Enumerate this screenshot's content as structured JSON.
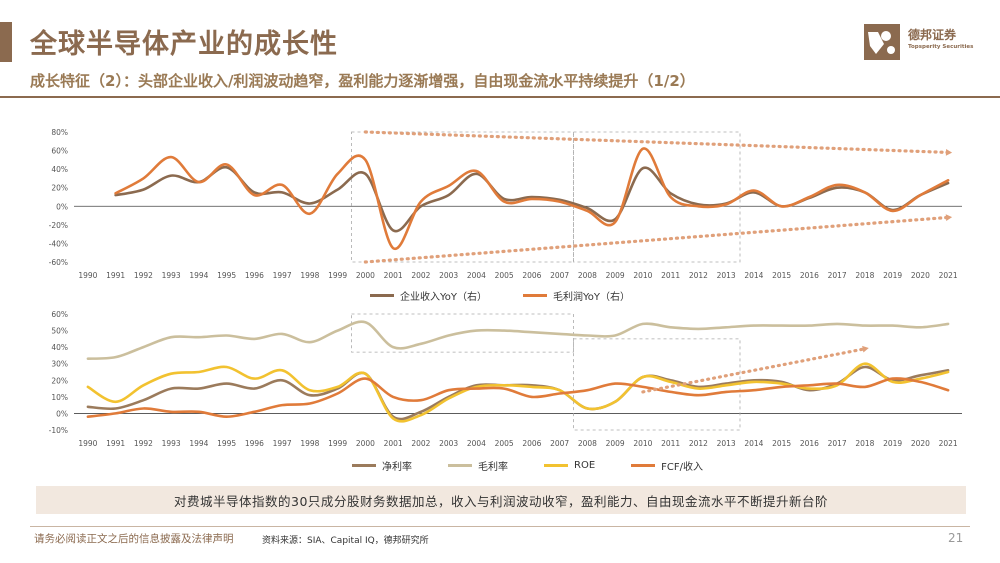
{
  "header": {
    "title": "全球半导体产业的成长性",
    "subtitle": "成长特征（2）：头部企业收入/利润波动趋窄，盈利能力逐渐增强，自由现金流水平持续提升（1/2）",
    "logo_cn": "德邦证券",
    "logo_en": "Topsperity Securities"
  },
  "colors": {
    "brand": "#8b6a4f",
    "revenue": "#8b6a4f",
    "gross_profit": "#e07b3a",
    "net_margin": "#9b7b5c",
    "gross_margin": "#cbbf9d",
    "roe": "#f2c230",
    "fcf": "#e07b3a"
  },
  "chart_data": [
    {
      "type": "line",
      "title": "",
      "x": [
        "1990",
        "1991",
        "1992",
        "1993",
        "1994",
        "1995",
        "1996",
        "1997",
        "1998",
        "1999",
        "2000",
        "2001",
        "2002",
        "2003",
        "2004",
        "2005",
        "2006",
        "2007",
        "2008",
        "2009",
        "2010",
        "2011",
        "2012",
        "2013",
        "2014",
        "2015",
        "2016",
        "2017",
        "2018",
        "2019",
        "2020",
        "2021"
      ],
      "y_ticks": [
        "80%",
        "60%",
        "40%",
        "20%",
        "0%",
        "-20%",
        "-40%",
        "-60%"
      ],
      "ylim": [
        -60,
        80
      ],
      "series": [
        {
          "name": "企业收入YoY（右）",
          "values": [
            null,
            12,
            18,
            33,
            26,
            42,
            15,
            15,
            3,
            18,
            35,
            -26,
            0,
            12,
            35,
            8,
            10,
            7,
            -2,
            -14,
            41,
            14,
            2,
            3,
            15,
            0,
            9,
            20,
            15,
            -4,
            12,
            25
          ]
        },
        {
          "name": "毛利润YoY（右）",
          "values": [
            null,
            14,
            30,
            53,
            26,
            45,
            12,
            23,
            -8,
            35,
            50,
            -45,
            5,
            22,
            38,
            5,
            8,
            5,
            -5,
            -17,
            62,
            10,
            0,
            2,
            17,
            0,
            10,
            23,
            15,
            -5,
            12,
            28
          ]
        }
      ],
      "annotations": [
        "dashed trend arrows indicate narrowing fluctuation range"
      ]
    },
    {
      "type": "line",
      "title": "",
      "x": [
        "1990",
        "1991",
        "1992",
        "1993",
        "1994",
        "1995",
        "1996",
        "1997",
        "1998",
        "1999",
        "2000",
        "2001",
        "2002",
        "2003",
        "2004",
        "2005",
        "2006",
        "2007",
        "2008",
        "2009",
        "2010",
        "2011",
        "2012",
        "2013",
        "2014",
        "2015",
        "2016",
        "2017",
        "2018",
        "2019",
        "2020",
        "2021"
      ],
      "y_ticks": [
        "60%",
        "50%",
        "40%",
        "30%",
        "20%",
        "10%",
        "0%",
        "-10%"
      ],
      "ylim": [
        -10,
        60
      ],
      "series": [
        {
          "name": "净利率",
          "values": [
            4,
            3,
            8,
            15,
            15,
            18,
            15,
            20,
            11,
            15,
            24,
            -2,
            1,
            10,
            17,
            17,
            17,
            14,
            3,
            7,
            22,
            20,
            16,
            18,
            20,
            19,
            14,
            18,
            28,
            20,
            23,
            26
          ]
        },
        {
          "name": "毛利率",
          "values": [
            33,
            34,
            40,
            46,
            46,
            47,
            45,
            48,
            43,
            50,
            55,
            40,
            42,
            47,
            50,
            50,
            49,
            48,
            47,
            47,
            54,
            52,
            51,
            52,
            53,
            53,
            53,
            54,
            53,
            53,
            52,
            54
          ]
        },
        {
          "name": "ROE",
          "values": [
            16,
            7,
            17,
            24,
            25,
            28,
            21,
            26,
            14,
            16,
            24,
            -3,
            -1,
            9,
            16,
            17,
            16,
            14,
            3,
            7,
            22,
            19,
            15,
            17,
            19,
            18,
            15,
            17,
            30,
            19,
            21,
            25
          ]
        },
        {
          "name": "FCF/收入",
          "values": [
            -2,
            0,
            3,
            1,
            1,
            -2,
            1,
            5,
            6,
            12,
            21,
            10,
            8,
            14,
            15,
            15,
            10,
            12,
            14,
            18,
            16,
            13,
            11,
            13,
            14,
            16,
            17,
            18,
            16,
            21,
            19,
            14
          ]
        }
      ]
    }
  ],
  "legend1": {
    "revenue_label": "企业收入YoY（右）",
    "gross_label": "毛利润YoY（右）"
  },
  "legend2": {
    "net_margin_label": "净利率",
    "gross_margin_label": "毛利率",
    "roe_label": "ROE",
    "fcf_label": "FCF/收入"
  },
  "note": "对费城半导体指数的30只成分股财务数据加总，收入与利润波动收窄，盈利能力、自由现金流水平不断提升新台阶",
  "footer": {
    "disclaimer": "请务必阅读正文之后的信息披露及法律声明",
    "source": "资料来源：SIA、Capital IQ，德邦研究所",
    "page_number": "21"
  }
}
